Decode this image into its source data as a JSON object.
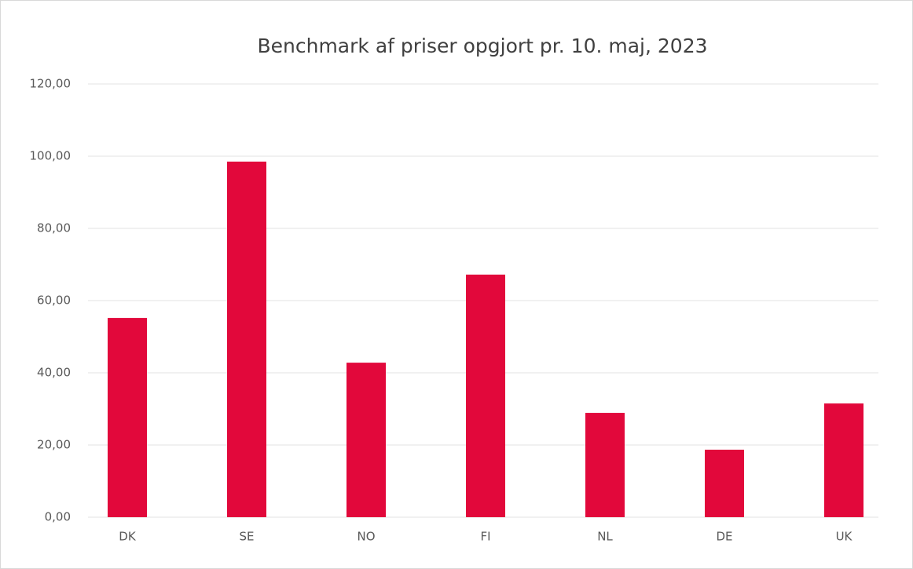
{
  "chart_data": {
    "type": "bar",
    "title": "Benchmark af priser opgjort pr. 10. maj, 2023",
    "categories": [
      "DK",
      "SE",
      "NO",
      "FI",
      "NL",
      "DE",
      "UK"
    ],
    "values": [
      55.2,
      98.5,
      42.8,
      67.2,
      28.9,
      18.7,
      31.5
    ],
    "color": "#e2083b",
    "ylim": [
      0,
      120
    ],
    "yticks": [
      {
        "value": 0,
        "label": "0,00"
      },
      {
        "value": 20,
        "label": "20,00"
      },
      {
        "value": 40,
        "label": "40,00"
      },
      {
        "value": 60,
        "label": "60,00"
      },
      {
        "value": 80,
        "label": "80,00"
      },
      {
        "value": 100,
        "label": "100,00"
      },
      {
        "value": 120,
        "label": "120,00"
      }
    ],
    "grid": true
  }
}
